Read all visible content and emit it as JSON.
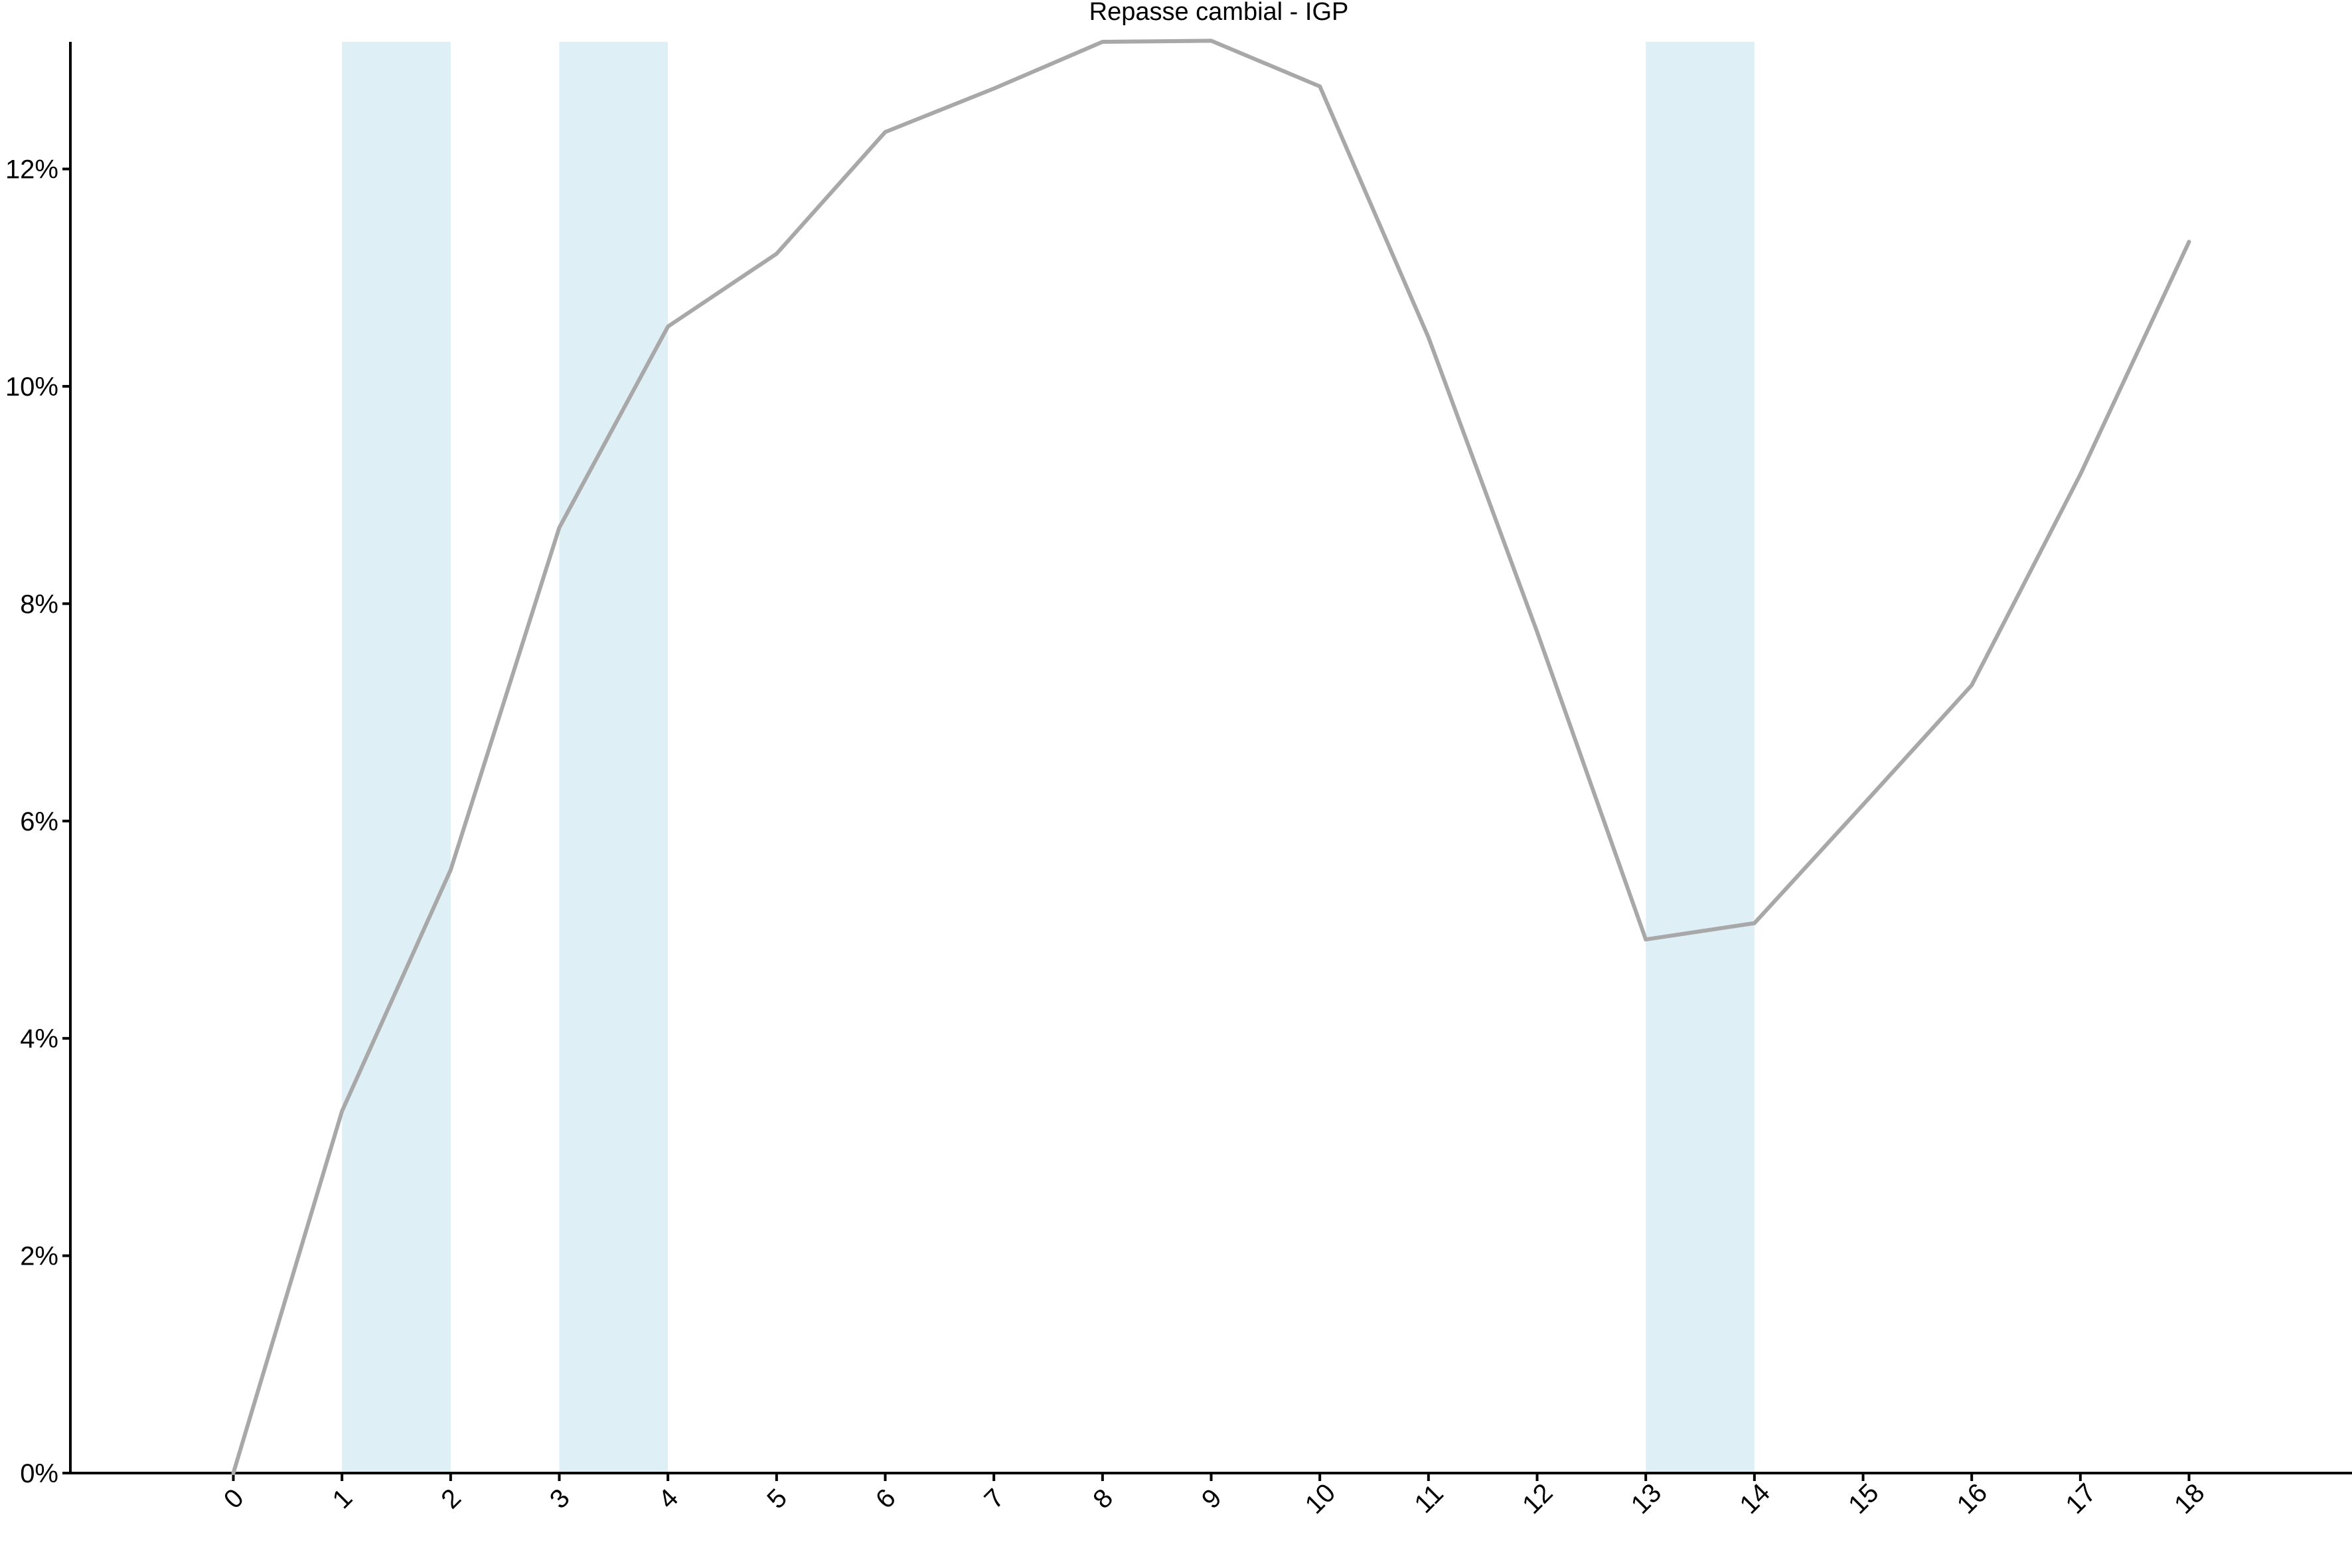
{
  "chart_data": {
    "type": "line",
    "title": "Repasse cambial -  IGP",
    "xlabel": "",
    "ylabel": "",
    "x": [
      0,
      1,
      2,
      3,
      4,
      5,
      6,
      7,
      8,
      9,
      10,
      11,
      12,
      13,
      14,
      15,
      16,
      17,
      18
    ],
    "x_tick_labels": [
      "0",
      "1",
      "2",
      "3",
      "4",
      "5",
      "6",
      "7",
      "8",
      "9",
      "10",
      "11",
      "12",
      "13",
      "14",
      "15",
      "16",
      "17",
      "18"
    ],
    "series": [
      {
        "values": [
          0.0,
          3.33,
          5.55,
          8.7,
          10.55,
          11.22,
          12.34,
          12.74,
          13.17,
          13.18,
          12.76,
          10.45,
          7.74,
          4.91,
          5.06,
          6.15,
          7.25,
          9.19,
          11.33
        ],
        "color": "#a8a8a8"
      }
    ],
    "shaded_bands": [
      {
        "x_start": 1,
        "x_end": 2
      },
      {
        "x_start": 3,
        "x_end": 4
      },
      {
        "x_start": 13,
        "x_end": 14
      }
    ],
    "band_color": "#deeff6",
    "y_ticks": [
      0,
      2,
      4,
      6,
      8,
      10,
      12
    ],
    "y_tick_labels": [
      "0%",
      "2%",
      "4%",
      "6%",
      "8%",
      "10%",
      "12%"
    ],
    "xlim": [
      -1.5,
      19.5
    ],
    "ylim": [
      0,
      13.17
    ],
    "grid": false,
    "legend": "none"
  }
}
